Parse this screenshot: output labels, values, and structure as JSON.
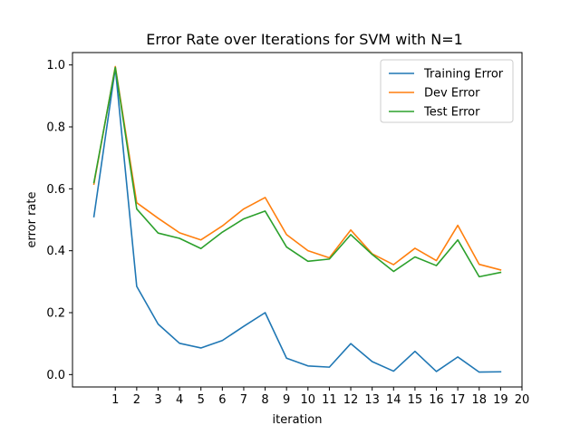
{
  "chart_data": {
    "type": "line",
    "title": "Error Rate over Iterations for SVM with N=1",
    "xlabel": "iteration",
    "ylabel": "error rate",
    "xlim": [
      -1,
      20
    ],
    "ylim": [
      -0.04,
      1.04
    ],
    "xticks": [
      1,
      2,
      3,
      4,
      5,
      6,
      7,
      8,
      9,
      10,
      11,
      12,
      13,
      14,
      15,
      16,
      17,
      18,
      19,
      20
    ],
    "xtick_labels": [
      "1",
      "2",
      "3",
      "4",
      "5",
      "6",
      "7",
      "8",
      "9",
      "10",
      "11",
      "12",
      "13",
      "14",
      "15",
      "16",
      "17",
      "18",
      "19",
      "20"
    ],
    "yticks": [
      0.0,
      0.2,
      0.4,
      0.6,
      0.8,
      1.0
    ],
    "ytick_labels": [
      "0.0",
      "0.2",
      "0.4",
      "0.6",
      "0.8",
      "1.0"
    ],
    "grid": false,
    "legend_position": "top-right",
    "x": [
      0,
      1,
      2,
      3,
      4,
      5,
      6,
      7,
      8,
      9,
      10,
      11,
      12,
      13,
      14,
      15,
      16,
      17,
      18,
      19
    ],
    "series": [
      {
        "name": "Training Error",
        "color": "#1f77b4",
        "values": [
          0.51,
          0.99,
          0.285,
          0.163,
          0.101,
          0.086,
          0.11,
          0.156,
          0.2,
          0.053,
          0.028,
          0.024,
          0.1,
          0.042,
          0.011,
          0.075,
          0.01,
          0.057,
          0.008,
          0.009
        ]
      },
      {
        "name": "Dev Error",
        "color": "#ff7f0e",
        "values": [
          0.615,
          0.995,
          0.555,
          0.505,
          0.458,
          0.435,
          0.48,
          0.535,
          0.572,
          0.452,
          0.4,
          0.377,
          0.467,
          0.39,
          0.355,
          0.408,
          0.368,
          0.482,
          0.356,
          0.338
        ]
      },
      {
        "name": "Test Error",
        "color": "#2ca02c",
        "values": [
          0.62,
          0.992,
          0.535,
          0.457,
          0.44,
          0.407,
          0.46,
          0.503,
          0.528,
          0.412,
          0.366,
          0.373,
          0.452,
          0.388,
          0.333,
          0.38,
          0.352,
          0.435,
          0.316,
          0.33
        ]
      }
    ]
  }
}
